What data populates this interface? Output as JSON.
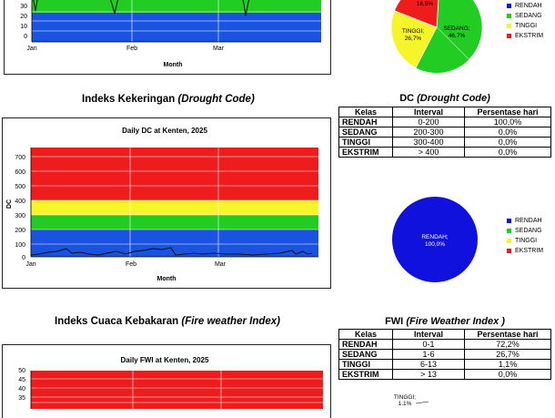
{
  "colors": {
    "rendah": "#1a53e0",
    "sedang": "#22cc22",
    "tinggi": "#f5f52a",
    "ekstrim": "#ee1c1c",
    "pie_blue": "#1111dd",
    "axis_bg": "#fff"
  },
  "top": {
    "yticks": [
      "30",
      "20",
      "10",
      "0"
    ],
    "xticks": [
      "Jan",
      "Feb",
      "Mar"
    ],
    "xlabel": "Month",
    "pie_labels": {
      "ekstrim": "18,5%",
      "tinggi": "TINGGI;\n26,7%",
      "sedang": "SEDANG;\n46,7%"
    },
    "legend": [
      "RENDAH",
      "SEDANG",
      "TINGGI",
      "EKSTRIM"
    ]
  },
  "dc": {
    "section_title": "Indeks Kekeringan",
    "section_title_italic": "(Drought Code)",
    "chart_title": "Daily DC at Kenten, 2025",
    "yticks": [
      "700",
      "600",
      "500",
      "400",
      "300",
      "200",
      "100",
      "0"
    ],
    "ylabel": "DC",
    "xticks": [
      "Jan",
      "Feb",
      "Mar"
    ],
    "xlabel": "Month",
    "table_title": "DC",
    "table_title_italic": "(Drought Code)",
    "headers": [
      "Kelas",
      "Interval",
      "Persentase hari"
    ],
    "rows": [
      {
        "kelas": "RENDAH",
        "interval": "0-200",
        "persen": "100,0%"
      },
      {
        "kelas": "SEDANG",
        "interval": "200-300",
        "persen": "0,0%"
      },
      {
        "kelas": "TINGGI",
        "interval": "300-400",
        "persen": "0,0%"
      },
      {
        "kelas": "EKSTRIM",
        "interval": "> 400",
        "persen": "0,0%"
      }
    ],
    "pie_label": "RENDAH;\n100,0%",
    "legend": [
      "RENDAH",
      "SEDANG",
      "TINGGI",
      "EKSTRIM"
    ]
  },
  "fwi": {
    "section_title": "Indeks Cuaca Kebakaran",
    "section_title_italic": "(Fire weather Index)",
    "chart_title": "Daily FWI at Kenten, 2025",
    "yticks": [
      "50",
      "45",
      "40",
      "35"
    ],
    "table_title": "FWI",
    "table_title_italic": "(Fire Weather Index )",
    "headers": [
      "Kelas",
      "Interval",
      "Persentase hari"
    ],
    "rows": [
      {
        "kelas": "RENDAH",
        "interval": "0-1",
        "persen": "72,2%"
      },
      {
        "kelas": "SEDANG",
        "interval": "1-6",
        "persen": "26,7%"
      },
      {
        "kelas": "TINGGI",
        "interval": "6-13",
        "persen": "1,1%"
      },
      {
        "kelas": "EKSTRIM",
        "interval": "> 13",
        "persen": "0,0%"
      }
    ],
    "pie_label_partial": "TINGGI;\n1,1%"
  }
}
